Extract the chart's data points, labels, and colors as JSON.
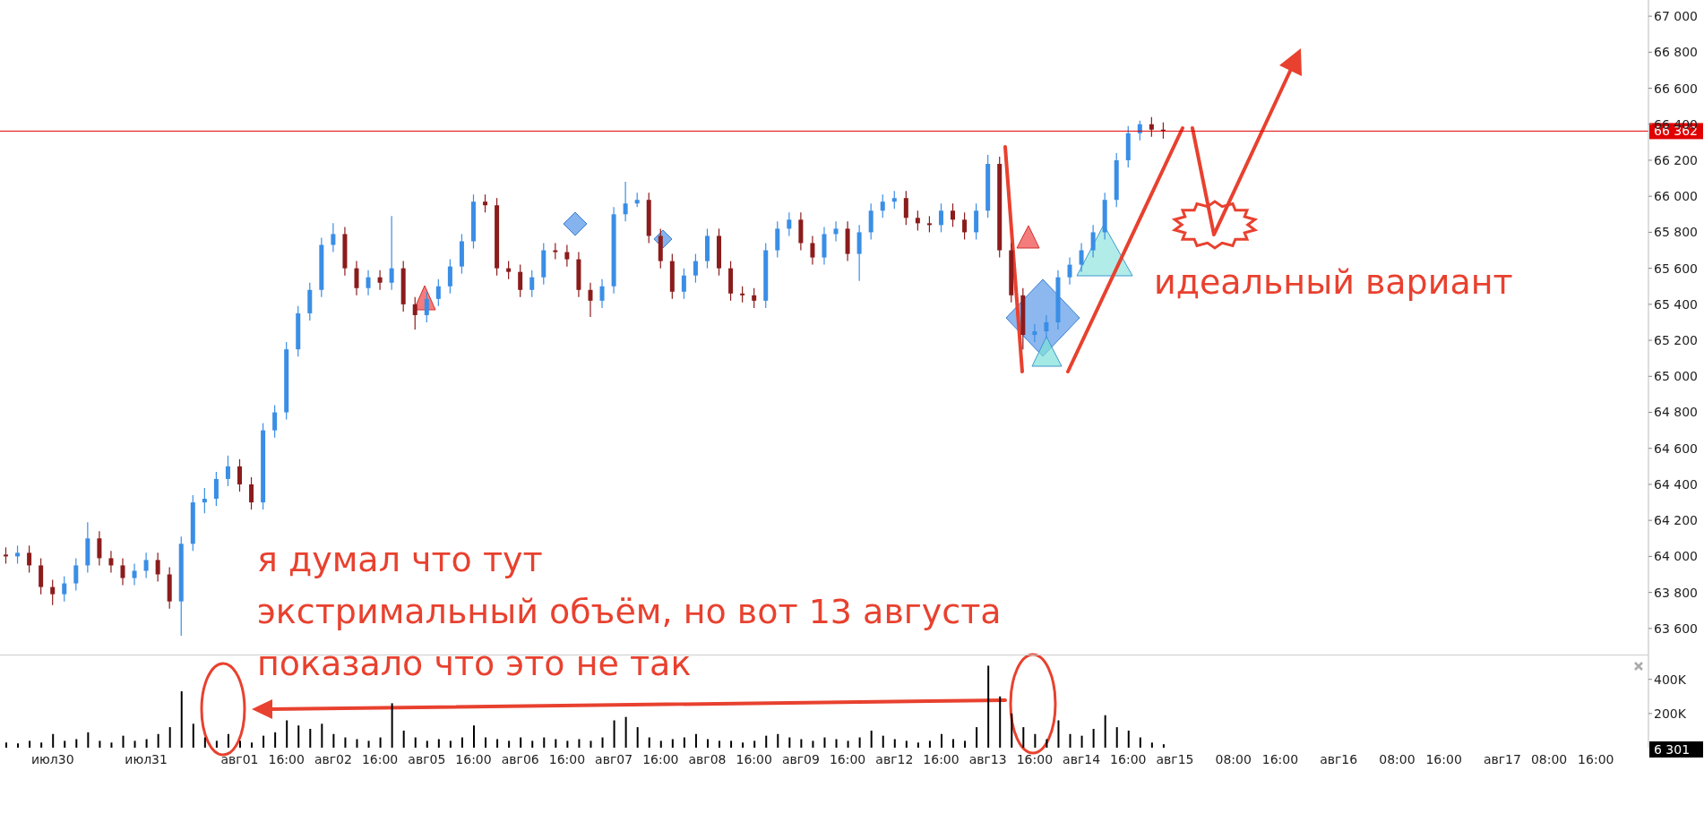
{
  "chart_data": [
    {
      "type": "candlestick",
      "categories": [
        null,
        null,
        null,
        null,
        null,
        null,
        null,
        null,
        null,
        null,
        null,
        null,
        null,
        null,
        null,
        null,
        null,
        null,
        null,
        null,
        null,
        null,
        null,
        null,
        null,
        null,
        null,
        null,
        null,
        null,
        null,
        null,
        null,
        null,
        null,
        null,
        null,
        null,
        null,
        null,
        null,
        null,
        null,
        null,
        null,
        null,
        null,
        null,
        null,
        null,
        null,
        null,
        null,
        null,
        null,
        null,
        null,
        null,
        null,
        null,
        null,
        null,
        null,
        null,
        null,
        null,
        null,
        null,
        null,
        null,
        null,
        null,
        null,
        null,
        null,
        null,
        null,
        null,
        null,
        null,
        null,
        null,
        null,
        null,
        null,
        null,
        null,
        null,
        null,
        null,
        null,
        null,
        null,
        null,
        null,
        null,
        null,
        null,
        null,
        null,
        null,
        null,
        null,
        null,
        null,
        null,
        null,
        null,
        null,
        null,
        null,
        null,
        null,
        null,
        null,
        null,
        null,
        null,
        null,
        null,
        null,
        null,
        null,
        null,
        null,
        null,
        null,
        null,
        null,
        null,
        null,
        null,
        null,
        null,
        null,
        null,
        null,
        null,
        null,
        null,
        null
      ],
      "ohlc": [
        [
          64010,
          64050,
          63960,
          64000
        ],
        [
          64000,
          64060,
          63960,
          64020
        ],
        [
          64020,
          64060,
          63910,
          63950
        ],
        [
          63950,
          63990,
          63790,
          63830
        ],
        [
          63830,
          63870,
          63730,
          63790
        ],
        [
          63790,
          63890,
          63750,
          63850
        ],
        [
          63850,
          63990,
          63810,
          63950
        ],
        [
          63950,
          64190,
          63910,
          64100
        ],
        [
          64100,
          64140,
          63950,
          63990
        ],
        [
          63990,
          64030,
          63910,
          63950
        ],
        [
          63950,
          63990,
          63840,
          63880
        ],
        [
          63880,
          63960,
          63840,
          63920
        ],
        [
          63920,
          64020,
          63880,
          63980
        ],
        [
          63980,
          64020,
          63860,
          63900
        ],
        [
          63900,
          63940,
          63710,
          63750
        ],
        [
          63750,
          64110,
          63560,
          64070
        ],
        [
          64070,
          64340,
          64030,
          64300
        ],
        [
          64300,
          64380,
          64240,
          64320
        ],
        [
          64320,
          64470,
          64280,
          64430
        ],
        [
          64430,
          64560,
          64390,
          64500
        ],
        [
          64500,
          64540,
          64360,
          64400
        ],
        [
          64400,
          64440,
          64260,
          64300
        ],
        [
          64300,
          64740,
          64260,
          64700
        ],
        [
          64700,
          64840,
          64660,
          64800
        ],
        [
          64800,
          65190,
          64760,
          65150
        ],
        [
          65150,
          65390,
          65110,
          65350
        ],
        [
          65350,
          65520,
          65310,
          65480
        ],
        [
          65480,
          65770,
          65440,
          65730
        ],
        [
          65730,
          65850,
          65690,
          65790
        ],
        [
          65790,
          65830,
          65560,
          65600
        ],
        [
          65600,
          65640,
          65450,
          65490
        ],
        [
          65490,
          65590,
          65450,
          65550
        ],
        [
          65550,
          65590,
          65480,
          65520
        ],
        [
          65520,
          65890,
          65480,
          65600
        ],
        [
          65600,
          65640,
          65360,
          65400
        ],
        [
          65400,
          65440,
          65260,
          65340
        ],
        [
          65340,
          65470,
          65300,
          65430
        ],
        [
          65430,
          65540,
          65390,
          65500
        ],
        [
          65500,
          65650,
          65460,
          65610
        ],
        [
          65610,
          65790,
          65570,
          65750
        ],
        [
          65750,
          66010,
          65710,
          65970
        ],
        [
          65970,
          66010,
          65910,
          65950
        ],
        [
          65950,
          65990,
          65560,
          65600
        ],
        [
          65600,
          65640,
          65540,
          65580
        ],
        [
          65580,
          65620,
          65440,
          65480
        ],
        [
          65480,
          65590,
          65440,
          65550
        ],
        [
          65550,
          65740,
          65510,
          65700
        ],
        [
          65700,
          65740,
          65650,
          65690
        ],
        [
          65690,
          65730,
          65610,
          65650
        ],
        [
          65650,
          65690,
          65440,
          65480
        ],
        [
          65480,
          65520,
          65330,
          65420
        ],
        [
          65420,
          65540,
          65380,
          65500
        ],
        [
          65500,
          65940,
          65460,
          65900
        ],
        [
          65900,
          66080,
          65860,
          65960
        ],
        [
          65960,
          66020,
          65940,
          65980
        ],
        [
          65980,
          66020,
          65740,
          65780
        ],
        [
          65780,
          65820,
          65600,
          65640
        ],
        [
          65640,
          65680,
          65430,
          65470
        ],
        [
          65470,
          65600,
          65430,
          65560
        ],
        [
          65560,
          65680,
          65520,
          65640
        ],
        [
          65640,
          65820,
          65600,
          65780
        ],
        [
          65780,
          65820,
          65560,
          65600
        ],
        [
          65600,
          65640,
          65420,
          65460
        ],
        [
          65460,
          65500,
          65410,
          65450
        ],
        [
          65450,
          65490,
          65380,
          65420
        ],
        [
          65420,
          65740,
          65380,
          65700
        ],
        [
          65700,
          65860,
          65660,
          65820
        ],
        [
          65820,
          65910,
          65780,
          65870
        ],
        [
          65870,
          65910,
          65700,
          65740
        ],
        [
          65740,
          65780,
          65620,
          65660
        ],
        [
          65660,
          65830,
          65620,
          65790
        ],
        [
          65790,
          65860,
          65750,
          65820
        ],
        [
          65820,
          65860,
          65640,
          65680
        ],
        [
          65680,
          65840,
          65530,
          65800
        ],
        [
          65800,
          65960,
          65760,
          65920
        ],
        [
          65920,
          66010,
          65880,
          65970
        ],
        [
          65970,
          66030,
          65930,
          65990
        ],
        [
          65990,
          66030,
          65840,
          65880
        ],
        [
          65880,
          65920,
          65810,
          65850
        ],
        [
          65850,
          65890,
          65800,
          65840
        ],
        [
          65840,
          65960,
          65800,
          65920
        ],
        [
          65920,
          65960,
          65830,
          65870
        ],
        [
          65870,
          65910,
          65760,
          65800
        ],
        [
          65800,
          65960,
          65760,
          65920
        ],
        [
          65920,
          66230,
          65880,
          66180
        ],
        [
          66180,
          66220,
          65660,
          65700
        ],
        [
          65700,
          65740,
          65410,
          65450
        ],
        [
          65450,
          65490,
          65150,
          65230
        ],
        [
          65230,
          65290,
          65190,
          65250
        ],
        [
          65250,
          65340,
          65210,
          65300
        ],
        [
          65300,
          65590,
          65260,
          65550
        ],
        [
          65550,
          65660,
          65510,
          65620
        ],
        [
          65620,
          65740,
          65580,
          65700
        ],
        [
          65700,
          65840,
          65660,
          65800
        ],
        [
          65800,
          66020,
          65760,
          65980
        ],
        [
          65980,
          66240,
          65940,
          66200
        ],
        [
          66200,
          66390,
          66160,
          66350
        ],
        [
          66350,
          66420,
          66310,
          66400
        ],
        [
          66400,
          66440,
          66330,
          66370
        ],
        [
          66370,
          66410,
          66320,
          66362
        ],
        null,
        null,
        null,
        null,
        null,
        null,
        null,
        null,
        null,
        null,
        null,
        null,
        null,
        null,
        null,
        null,
        null,
        null,
        null,
        null,
        null,
        null,
        null,
        null,
        null,
        null,
        null,
        null,
        null,
        null,
        null,
        null,
        null,
        null,
        null,
        null,
        null,
        null,
        null,
        null,
        null
      ],
      "ylim": [
        63450,
        67090
      ],
      "yticks": [
        {
          "value": 63600,
          "label": "63 600"
        },
        {
          "value": 63800,
          "label": "63 800"
        },
        {
          "value": 64000,
          "label": "64 000"
        },
        {
          "value": 64200,
          "label": "64 200"
        },
        {
          "value": 64400,
          "label": "64 400"
        },
        {
          "value": 64600,
          "label": "64 600"
        },
        {
          "value": 64800,
          "label": "64 800"
        },
        {
          "value": 65000,
          "label": "65 000"
        },
        {
          "value": 65200,
          "label": "65 200"
        },
        {
          "value": 65400,
          "label": "65 400"
        },
        {
          "value": 65600,
          "label": "65 600"
        },
        {
          "value": 65800,
          "label": "65 800"
        },
        {
          "value": 66000,
          "label": "66 000"
        },
        {
          "value": 66200,
          "label": "66 200"
        },
        {
          "value": 66400,
          "label": "66 400"
        },
        {
          "value": 66600,
          "label": "66 600"
        },
        {
          "value": 66800,
          "label": "66 800"
        },
        {
          "value": 67000,
          "label": "67 000"
        }
      ],
      "tick_labels": "y",
      "ref_lines": [
        {
          "axis": "y",
          "value": 66362,
          "label": "66 362",
          "color": "#e00000"
        }
      ],
      "annotations": [
        "я думал что тут\nэкстримальный объём, но вот 13 августа\nпоказало что это не так",
        "идеальный вариант"
      ]
    },
    {
      "type": "bar",
      "categories": [
        null,
        null,
        null,
        null,
        "июл30",
        null,
        null,
        null,
        null,
        null,
        null,
        null,
        "июл31",
        null,
        null,
        null,
        null,
        null,
        null,
        null,
        "авг01",
        null,
        null,
        null,
        "16:00",
        null,
        null,
        null,
        "авг02",
        null,
        null,
        null,
        "16:00",
        null,
        null,
        null,
        "авг05",
        null,
        null,
        null,
        "16:00",
        null,
        null,
        null,
        "авг06",
        null,
        null,
        null,
        "16:00",
        null,
        null,
        null,
        "авг07",
        null,
        null,
        null,
        "16:00",
        null,
        null,
        null,
        "авг08",
        null,
        null,
        null,
        "16:00",
        null,
        null,
        null,
        "авг09",
        null,
        null,
        null,
        "16:00",
        null,
        null,
        null,
        "авг12",
        null,
        null,
        null,
        "16:00",
        null,
        null,
        null,
        "авг13",
        null,
        null,
        null,
        "16:00",
        null,
        null,
        null,
        "авг14",
        null,
        null,
        null,
        "16:00",
        null,
        null,
        null,
        "авг15",
        null,
        null,
        null,
        null,
        "08:00",
        null,
        null,
        null,
        "16:00",
        null,
        null,
        null,
        null,
        "авг16",
        null,
        null,
        null,
        null,
        "08:00",
        null,
        null,
        null,
        "16:00",
        null,
        null,
        null,
        null,
        "авг17",
        null,
        null,
        null,
        "08:00",
        null,
        null,
        null,
        "16:00",
        null,
        null,
        null,
        null
      ],
      "values": [
        30000,
        25000,
        40000,
        30000,
        80000,
        40000,
        50000,
        90000,
        40000,
        30000,
        70000,
        40000,
        50000,
        80000,
        120000,
        330000,
        140000,
        60000,
        40000,
        80000,
        40000,
        30000,
        70000,
        90000,
        160000,
        130000,
        110000,
        140000,
        80000,
        60000,
        50000,
        40000,
        60000,
        260000,
        100000,
        60000,
        40000,
        50000,
        40000,
        60000,
        130000,
        60000,
        50000,
        40000,
        60000,
        40000,
        60000,
        50000,
        40000,
        50000,
        40000,
        60000,
        160000,
        180000,
        120000,
        60000,
        40000,
        50000,
        60000,
        80000,
        50000,
        40000,
        40000,
        30000,
        40000,
        70000,
        80000,
        60000,
        50000,
        40000,
        60000,
        50000,
        40000,
        60000,
        100000,
        70000,
        50000,
        40000,
        30000,
        40000,
        80000,
        50000,
        40000,
        120000,
        480000,
        300000,
        200000,
        120000,
        80000,
        50000,
        160000,
        80000,
        70000,
        110000,
        190000,
        120000,
        100000,
        60000,
        30000,
        20000,
        null,
        null,
        null,
        null,
        null,
        null,
        null,
        null,
        null,
        null,
        null,
        null,
        null,
        null,
        null,
        null,
        null,
        null,
        null,
        null,
        null,
        null,
        null,
        null,
        null,
        null,
        null,
        null,
        null,
        null,
        null,
        null,
        null,
        null,
        null,
        null,
        null,
        null,
        null,
        null,
        null
      ],
      "color": "#000000",
      "ylim": [
        0,
        540000
      ],
      "yticks": [
        {
          "value": 200000,
          "label": "200K"
        },
        {
          "value": 400000,
          "label": "400K"
        }
      ],
      "annotations": [
        "6 301"
      ]
    }
  ]
}
